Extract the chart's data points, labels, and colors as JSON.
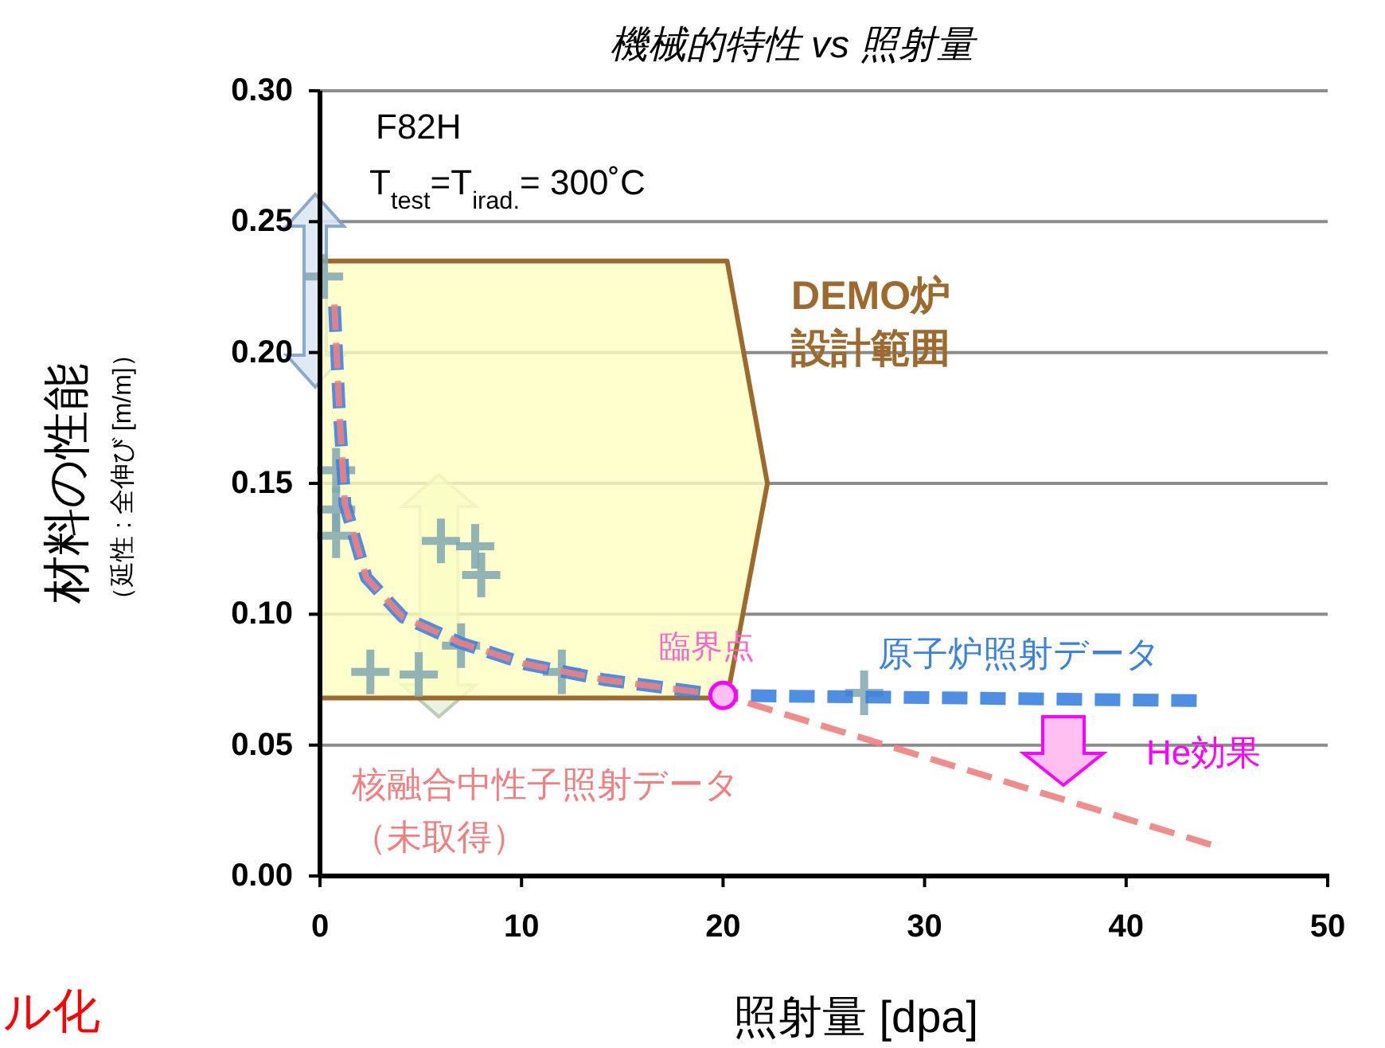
{
  "chart_data": {
    "type": "scatter",
    "title": "機械的特性 vs 照射量",
    "xlabel": "照射量 [dpa]",
    "ylabel": "材料の性能（延性 : 全伸び [m/m]）",
    "xlim": [
      0,
      50
    ],
    "xticks": [
      0,
      10,
      20,
      30,
      40,
      50
    ],
    "ylim": [
      0,
      0.3
    ],
    "yticks": [
      {
        "value": 0,
        "label": "0.00"
      },
      {
        "value": 0.05,
        "label": "0.05"
      },
      {
        "value": 0.1,
        "label": "0.10"
      },
      {
        "value": 0.15,
        "label": "0.15"
      },
      {
        "value": 0.2,
        "label": "0.20"
      },
      {
        "value": 0.25,
        "label": "0.25"
      },
      {
        "value": 0.3,
        "label": "0.30"
      }
    ],
    "grid": "y",
    "series": [
      {
        "type": "area",
        "name": "DEMO炉設計範囲",
        "color": "#9c6a2e",
        "x": [
          0,
          20.2,
          22.2
        ],
        "values": [
          null,
          null,
          null
        ],
        "upper": [
          0.235,
          0.235,
          0.15
        ],
        "lower": [
          0.068,
          0.068,
          0.15
        ]
      },
      {
        "color": "#7fa7b0",
        "marker": "cross",
        "x": [
          0.2,
          0.8,
          0.8,
          0.8,
          6.0,
          7.7,
          8.0,
          2.5,
          4.9,
          7.0,
          12.0,
          27.0
        ],
        "values": [
          0.229,
          0.155,
          0.14,
          0.13,
          0.128,
          0.126,
          0.115,
          0.078,
          0.077,
          0.088,
          0.078,
          0.07
        ]
      },
      {
        "type": "line",
        "name": "原子炉照射データ",
        "color": "#3b82e0",
        "line_style": "dashed",
        "x": [
          0.7,
          0.97,
          1.24,
          2.3,
          4.1,
          7.0,
          10.2,
          14.1,
          20,
          43.5
        ],
        "values": [
          0.221,
          0.176,
          0.142,
          0.114,
          0.099,
          0.089,
          0.081,
          0.075,
          0.069,
          0.067
        ]
      },
      {
        "type": "line",
        "name": "核融合中性子照射データ（未取得）",
        "color": "#f08080",
        "line_style": "dashed",
        "x": [
          0.7,
          0.97,
          1.24,
          2.3,
          4.1,
          7.0,
          10.2,
          14.1,
          20,
          44.2
        ],
        "values": [
          0.221,
          0.176,
          0.142,
          0.114,
          0.099,
          0.089,
          0.081,
          0.075,
          0.069,
          0.012
        ]
      },
      {
        "type": "scatter",
        "color": "#ff00ff",
        "marker": "circle",
        "x": [
          20
        ],
        "values": [
          0.069
        ]
      }
    ],
    "annotations": [
      "F82H",
      "T$_{test}$=T$_{irad.}$= 300˚C",
      {
        "text": "臨界点",
        "x": 20,
        "y": 0.069
      },
      "He効果",
      "ル化"
    ]
  }
}
